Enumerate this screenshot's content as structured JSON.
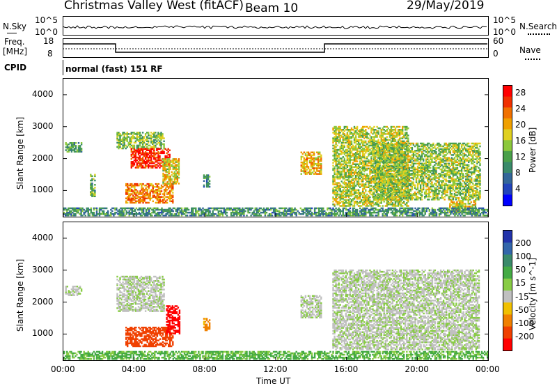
{
  "header": {
    "station": "Christmas Valley West (fitACF)",
    "beam": "Beam 10",
    "date": "29/May/2019"
  },
  "top_panels": {
    "nsky_label": "N.Sky",
    "nsearch_label": "N.Search",
    "count_ticks": [
      "10^5",
      "10^0"
    ],
    "freq_label": "Freq.",
    "freq_unit": "[MHz]",
    "freq_ticks": [
      "18",
      "8"
    ],
    "nave_label": "Nave",
    "nave_ticks": [
      "60",
      "0"
    ],
    "cpid_label": "CPID",
    "cpid_value": "normal (fast) 151 RF"
  },
  "chart_data": [
    {
      "type": "heatmap",
      "name": "power-panel",
      "ylabel": "Slant Range [km]",
      "xlabel": "Time UT",
      "ylim": [
        180,
        4500
      ],
      "xlim_hours": [
        0,
        24
      ],
      "y_ticks": [
        "1000",
        "2000",
        "3000",
        "4000"
      ],
      "y_tick_values": [
        1000,
        2000,
        3000,
        4000
      ],
      "x_ticks": [
        "00:00",
        "04:00",
        "08:00",
        "12:00",
        "16:00",
        "20:00",
        "00:00"
      ],
      "x_tick_values": [
        0,
        4,
        8,
        12,
        16,
        20,
        24
      ],
      "colorbar": {
        "label": "Power [dB]",
        "ticks": [
          "4",
          "8",
          "12",
          "16",
          "20",
          "24",
          "28"
        ],
        "range": [
          0,
          30
        ],
        "colors": [
          "#0000ff",
          "#2244bb",
          "#336699",
          "#3a8a6a",
          "#4aa04a",
          "#8cc83c",
          "#e0d020",
          "#f0a000",
          "#f07000",
          "#f03000",
          "#ff0000"
        ]
      },
      "regions": [
        {
          "t": [
            0.1,
            1.0
          ],
          "r": [
            2200,
            2500
          ],
          "v": 12
        },
        {
          "t": [
            1.5,
            1.8
          ],
          "r": [
            800,
            1500
          ],
          "v": 12
        },
        {
          "t": [
            3.0,
            5.7
          ],
          "r": [
            2300,
            2800
          ],
          "v": 14
        },
        {
          "t": [
            3.8,
            6.0
          ],
          "r": [
            1700,
            2300
          ],
          "v": 27
        },
        {
          "t": [
            3.5,
            6.2
          ],
          "r": [
            600,
            1200
          ],
          "v": 22
        },
        {
          "t": [
            5.6,
            6.5
          ],
          "r": [
            1200,
            2000
          ],
          "v": 18
        },
        {
          "t": [
            7.9,
            8.3
          ],
          "r": [
            1100,
            1500
          ],
          "v": 10
        },
        {
          "t": [
            13.4,
            14.6
          ],
          "r": [
            1500,
            2200
          ],
          "v": 20
        },
        {
          "t": [
            15.2,
            19.5
          ],
          "r": [
            500,
            3000
          ],
          "v": 16
        },
        {
          "t": [
            17.5,
            23.5
          ],
          "r": [
            700,
            2500
          ],
          "v": 15
        },
        {
          "t": [
            21.8,
            23.3
          ],
          "r": [
            300,
            700
          ],
          "v": 18
        },
        {
          "t": [
            0.0,
            24.0
          ],
          "r": [
            200,
            450
          ],
          "v": 10
        }
      ]
    },
    {
      "type": "heatmap",
      "name": "velocity-panel",
      "ylabel": "Slant Range [km]",
      "xlabel": "Time UT",
      "ylim": [
        180,
        4500
      ],
      "xlim_hours": [
        0,
        24
      ],
      "y_ticks": [
        "1000",
        "2000",
        "3000",
        "4000"
      ],
      "y_tick_values": [
        1000,
        2000,
        3000,
        4000
      ],
      "x_ticks": [
        "00:00",
        "04:00",
        "08:00",
        "12:00",
        "16:00",
        "20:00",
        "00:00"
      ],
      "x_tick_values": [
        0,
        4,
        8,
        12,
        16,
        20,
        24
      ],
      "colorbar": {
        "label": "Velocity [m s^-1]",
        "ticks": [
          "200",
          "100",
          "50",
          "15",
          "-15",
          "-50",
          "-100",
          "-200"
        ],
        "colors": [
          "#2233aa",
          "#3366aa",
          "#3a8a6a",
          "#44aa44",
          "#88cc44",
          "#c0c0c0",
          "#f0c000",
          "#f08000",
          "#f04000",
          "#ff0000"
        ]
      },
      "regions": [
        {
          "t": [
            0.1,
            1.0
          ],
          "r": [
            2200,
            2500
          ],
          "v": 0
        },
        {
          "t": [
            3.0,
            5.7
          ],
          "r": [
            1700,
            2800
          ],
          "v": 0
        },
        {
          "t": [
            3.5,
            6.2
          ],
          "r": [
            600,
            1200
          ],
          "v": -120
        },
        {
          "t": [
            5.8,
            6.6
          ],
          "r": [
            1000,
            1900
          ],
          "v": -220
        },
        {
          "t": [
            7.9,
            8.3
          ],
          "r": [
            1100,
            1500
          ],
          "v": -60
        },
        {
          "t": [
            13.4,
            14.6
          ],
          "r": [
            1500,
            2200
          ],
          "v": 0
        },
        {
          "t": [
            15.2,
            23.5
          ],
          "r": [
            500,
            3000
          ],
          "v": 0
        },
        {
          "t": [
            0.0,
            24.0
          ],
          "r": [
            200,
            450
          ],
          "v": 20
        }
      ]
    }
  ]
}
